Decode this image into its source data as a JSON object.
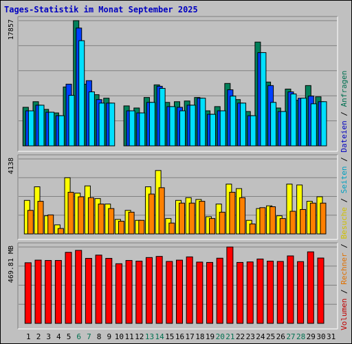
{
  "title": "Tages-Statistik im Monat September 2025",
  "legend": {
    "parts": [
      {
        "text": "Volumen",
        "color": "#c00000"
      },
      {
        "text": " / ",
        "color": "#000000"
      },
      {
        "text": "Rechner",
        "color": "#e07000"
      },
      {
        "text": " / ",
        "color": "#000000"
      },
      {
        "text": "Besuche",
        "color": "#d0c000"
      },
      {
        "text": " / ",
        "color": "#000000"
      },
      {
        "text": "Seiten",
        "color": "#00a0c0"
      },
      {
        "text": " / ",
        "color": "#000000"
      },
      {
        "text": "Dateien",
        "color": "#0000c0"
      },
      {
        "text": " / ",
        "color": "#000000"
      },
      {
        "text": "Anfragen",
        "color": "#007050"
      }
    ]
  },
  "colors": {
    "background": "#c0c0c0",
    "anfragen": "#00805a",
    "dateien": "#0040ff",
    "seiten": "#00e0ff",
    "besuche": "#ffff00",
    "rechner": "#ff8000",
    "volumen": "#ff0000",
    "weekend_label": "#007050",
    "weekday_label": "#000000"
  },
  "chart_data": [
    {
      "type": "bar",
      "panel": "top",
      "ymax_label": "17857",
      "ymax": 17857,
      "categories": [
        "1",
        "2",
        "3",
        "4",
        "5",
        "6",
        "7",
        "8",
        "9",
        "10",
        "11",
        "12",
        "13",
        "14",
        "15",
        "16",
        "17",
        "18",
        "19",
        "20",
        "21",
        "22",
        "23",
        "24",
        "25",
        "26",
        "27",
        "28",
        "29",
        "30",
        "31"
      ],
      "series": [
        {
          "name": "Anfragen",
          "values": [
            5500,
            6300,
            5200,
            4700,
            8400,
            17857,
            8800,
            7300,
            6800,
            0,
            5700,
            5400,
            6900,
            8700,
            6200,
            6300,
            6400,
            6900,
            5000,
            5600,
            8900,
            6600,
            4900,
            14800,
            9100,
            5400,
            8100,
            6500,
            8600,
            7000,
            0
          ]
        },
        {
          "name": "Dateien",
          "values": [
            5000,
            5800,
            4800,
            4300,
            8800,
            16800,
            9300,
            6600,
            6100,
            0,
            5000,
            4700,
            6200,
            8500,
            5600,
            5500,
            5800,
            6800,
            4500,
            5000,
            8000,
            6100,
            4300,
            13300,
            8600,
            4900,
            7700,
            6800,
            7100,
            6300,
            0
          ]
        },
        {
          "name": "Seiten",
          "values": [
            5000,
            5800,
            4800,
            4300,
            7200,
            15000,
            7700,
            6100,
            6100,
            0,
            5000,
            4700,
            6200,
            8200,
            5600,
            5000,
            5800,
            6800,
            4500,
            5000,
            7100,
            6100,
            4300,
            13300,
            6200,
            4900,
            7400,
            6800,
            6000,
            6300,
            0
          ]
        }
      ]
    },
    {
      "type": "bar",
      "panel": "middle",
      "ymax_label": "4138",
      "ymax": 4138,
      "categories": [
        "1",
        "2",
        "3",
        "4",
        "5",
        "6",
        "7",
        "8",
        "9",
        "10",
        "11",
        "12",
        "13",
        "14",
        "15",
        "16",
        "17",
        "18",
        "19",
        "20",
        "21",
        "22",
        "23",
        "24",
        "25",
        "26",
        "27",
        "28",
        "29",
        "30",
        "31"
      ],
      "series": [
        {
          "name": "Besuche",
          "values": [
            1850,
            2600,
            1000,
            500,
            3100,
            2250,
            2650,
            1950,
            1650,
            800,
            1300,
            750,
            2600,
            3500,
            850,
            1850,
            2000,
            1900,
            950,
            1650,
            2750,
            2500,
            750,
            1400,
            1550,
            1000,
            2750,
            2700,
            1800,
            2050,
            0
          ]
        },
        {
          "name": "Rechner",
          "values": [
            1300,
            1800,
            1050,
            300,
            2300,
            2050,
            2000,
            1650,
            1400,
            700,
            1200,
            750,
            2200,
            2550,
            600,
            1700,
            1700,
            1800,
            850,
            1200,
            2300,
            2000,
            550,
            1450,
            1500,
            850,
            1250,
            1350,
            1700,
            1700,
            0
          ]
        }
      ]
    },
    {
      "type": "bar",
      "panel": "bottom",
      "ymax_label": "469.81 MB",
      "ymax": 469.81,
      "unit": "MB",
      "categories": [
        "1",
        "2",
        "3",
        "4",
        "5",
        "6",
        "7",
        "8",
        "9",
        "10",
        "11",
        "12",
        "13",
        "14",
        "15",
        "16",
        "17",
        "18",
        "19",
        "20",
        "21",
        "22",
        "23",
        "24",
        "25",
        "26",
        "27",
        "28",
        "29",
        "30",
        "31"
      ],
      "series": [
        {
          "name": "Volumen",
          "values": [
            373,
            389,
            387,
            387,
            437,
            449,
            400,
            420,
            400,
            367,
            387,
            383,
            405,
            412,
            381,
            389,
            409,
            377,
            375,
            401,
            469.81,
            375,
            378,
            396,
            383,
            381,
            415,
            380,
            440,
            402,
            0
          ]
        }
      ]
    }
  ],
  "x_axis": {
    "labels": [
      "1",
      "2",
      "3",
      "4",
      "5",
      "6",
      "7",
      "8",
      "9",
      "10",
      "11",
      "12",
      "13",
      "14",
      "15",
      "16",
      "17",
      "18",
      "19",
      "20",
      "21",
      "22",
      "23",
      "24",
      "25",
      "26",
      "27",
      "28",
      "29",
      "30",
      "31"
    ],
    "weekend": [
      6,
      7,
      13,
      14,
      20,
      21,
      27,
      28
    ]
  }
}
